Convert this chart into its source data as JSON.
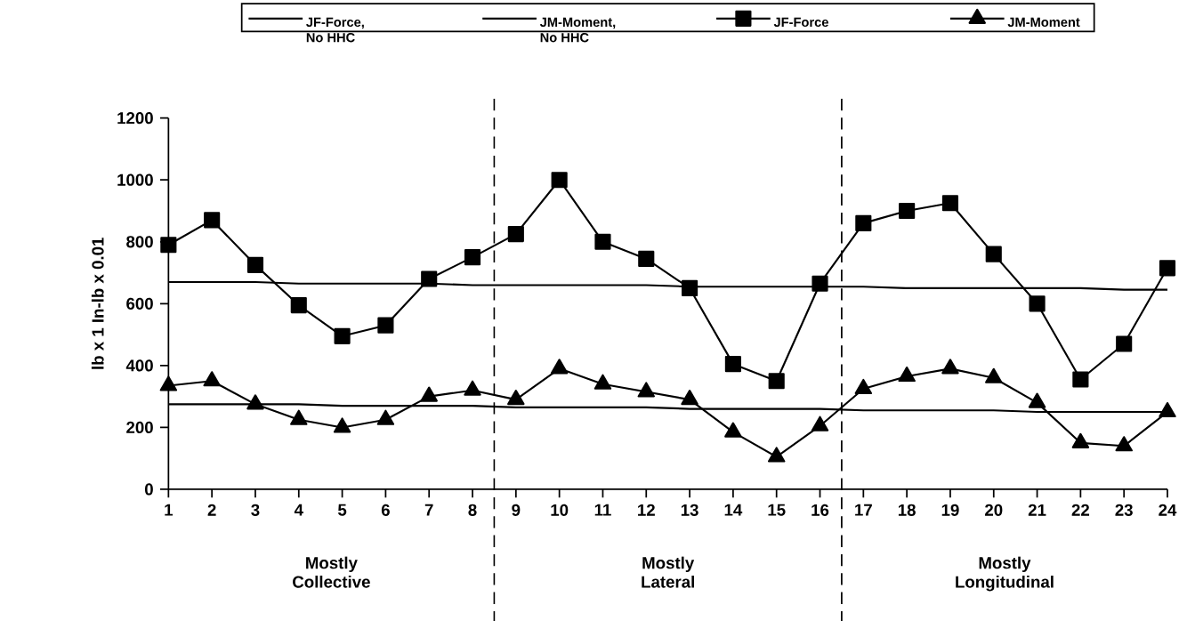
{
  "chart_data": {
    "type": "line",
    "x": [
      1,
      2,
      3,
      4,
      5,
      6,
      7,
      8,
      9,
      10,
      11,
      12,
      13,
      14,
      15,
      16,
      17,
      18,
      19,
      20,
      21,
      22,
      23,
      24
    ],
    "series": [
      {
        "name": "JF-Force, No HHC",
        "color": "#000000",
        "marker": "none",
        "values": [
          670,
          670,
          670,
          665,
          665,
          665,
          665,
          660,
          660,
          660,
          660,
          660,
          655,
          655,
          655,
          655,
          655,
          650,
          650,
          650,
          650,
          650,
          645,
          645
        ]
      },
      {
        "name": "JM-Moment, No HHC",
        "color": "#000000",
        "marker": "none",
        "values": [
          275,
          275,
          275,
          275,
          270,
          270,
          270,
          270,
          265,
          265,
          265,
          265,
          260,
          260,
          260,
          260,
          255,
          255,
          255,
          255,
          250,
          250,
          250,
          250
        ]
      },
      {
        "name": "JF-Force",
        "color": "#000000",
        "marker": "square",
        "values": [
          790,
          870,
          725,
          595,
          495,
          530,
          680,
          750,
          825,
          1000,
          800,
          745,
          650,
          405,
          350,
          665,
          860,
          900,
          925,
          760,
          600,
          355,
          470,
          715
        ]
      },
      {
        "name": "JM-Moment",
        "color": "#000000",
        "marker": "triangle",
        "values": [
          335,
          350,
          275,
          225,
          200,
          225,
          300,
          320,
          290,
          390,
          340,
          315,
          290,
          185,
          105,
          205,
          325,
          365,
          390,
          360,
          280,
          150,
          140,
          250
        ]
      }
    ],
    "ylabel": "lb x 1 In-lb x 0.01",
    "xlim": [
      1,
      24
    ],
    "xticks": [
      1,
      2,
      3,
      4,
      5,
      6,
      7,
      8,
      9,
      10,
      11,
      12,
      13,
      14,
      15,
      16,
      17,
      18,
      19,
      20,
      21,
      22,
      23,
      24
    ],
    "ylim": [
      0,
      1200
    ],
    "yticks": [
      0,
      200,
      400,
      600,
      800,
      1000,
      1200
    ],
    "ref_lines": [
      {
        "axis": "x",
        "value": 8.5,
        "line_style": "dashed",
        "color": "#000000"
      },
      {
        "axis": "x",
        "value": 16.5,
        "line_style": "dashed",
        "color": "#000000"
      }
    ],
    "annotations": [
      "Mostly Collective",
      "Mostly Lateral",
      "Mostly Longitudinal"
    ],
    "legend": "top",
    "grid": false,
    "line_style": "solid"
  }
}
